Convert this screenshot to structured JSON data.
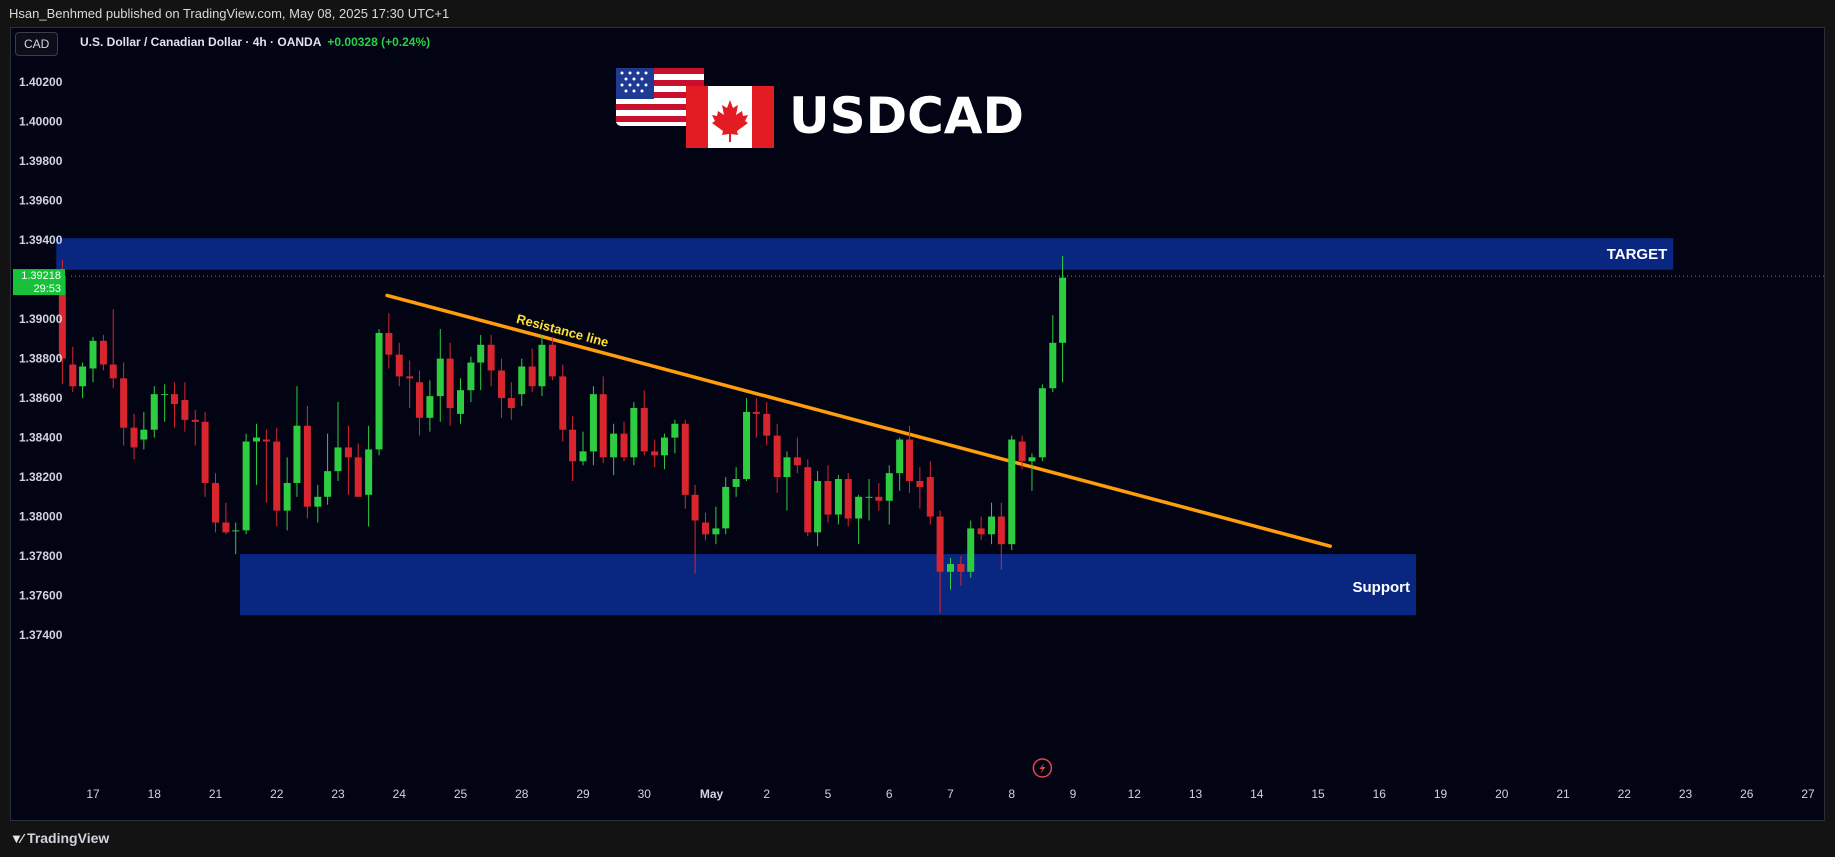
{
  "header": {
    "published_by": "Hsan_Benhmed published on TradingView.com, May 08, 2025 17:30 UTC+1"
  },
  "toolbar": {
    "symbol_badge": "CAD"
  },
  "legend": {
    "title": "U.S. Dollar / Canadian Dollar · 4h · OANDA",
    "change": "+0.00328 (+0.24%)"
  },
  "brand": {
    "title": "USDCAD",
    "flag_left": "us-flag-icon",
    "flag_right": "canada-flag-icon"
  },
  "footer": {
    "logo_text": "TradingView"
  },
  "colors": {
    "background": "#020414",
    "up": "#2ecc40",
    "down": "#d9262e",
    "zone": "#0a2a8a",
    "trendline": "#ff9d0a",
    "price_tag": "#18c13a"
  },
  "chart_data": {
    "type": "candlestick",
    "title": "U.S. Dollar / Canadian Dollar · 4h · OANDA",
    "ylim": [
      1.3735,
      1.4035
    ],
    "y_ticks": [
      "1.40200",
      "1.40000",
      "1.39800",
      "1.39600",
      "1.39400",
      "1.39000",
      "1.38800",
      "1.38600",
      "1.38400",
      "1.38200",
      "1.38000",
      "1.37800",
      "1.37600",
      "1.37400"
    ],
    "x_ticks": [
      {
        "label": "17",
        "day": 0
      },
      {
        "label": "18",
        "day": 1
      },
      {
        "label": "21",
        "day": 2
      },
      {
        "label": "22",
        "day": 3
      },
      {
        "label": "23",
        "day": 4
      },
      {
        "label": "24",
        "day": 5
      },
      {
        "label": "25",
        "day": 6
      },
      {
        "label": "28",
        "day": 7
      },
      {
        "label": "29",
        "day": 8
      },
      {
        "label": "30",
        "day": 9
      },
      {
        "label": "May",
        "day": 10
      },
      {
        "label": "2",
        "day": 11
      },
      {
        "label": "5",
        "day": 12
      },
      {
        "label": "6",
        "day": 13
      },
      {
        "label": "7",
        "day": 14
      },
      {
        "label": "8",
        "day": 15
      },
      {
        "label": "9",
        "day": 16
      },
      {
        "label": "12",
        "day": 17
      },
      {
        "label": "13",
        "day": 18
      },
      {
        "label": "14",
        "day": 19
      },
      {
        "label": "15",
        "day": 20
      },
      {
        "label": "16",
        "day": 21
      },
      {
        "label": "19",
        "day": 22
      },
      {
        "label": "20",
        "day": 23
      },
      {
        "label": "21",
        "day": 24
      },
      {
        "label": "22",
        "day": 25
      },
      {
        "label": "23",
        "day": 26
      },
      {
        "label": "26",
        "day": 27
      },
      {
        "label": "27",
        "day": 28
      }
    ],
    "last_price": "1.39218",
    "countdown": "29:53",
    "zones": [
      {
        "label": "TARGET",
        "from_day": -0.6,
        "to_day": 25.8,
        "low": 1.3925,
        "high": 1.3941
      },
      {
        "label": "Support",
        "from_day": 2.4,
        "to_day": 21.6,
        "low": 1.375,
        "high": 1.3781
      }
    ],
    "trendline": {
      "label": "Resistance line",
      "start": {
        "day": 4.8,
        "price": 1.3912
      },
      "end": {
        "day": 20.2,
        "price": 1.3785
      }
    },
    "candles": [
      {
        "d": -0.5,
        "o": 1.3922,
        "h": 1.393,
        "l": 1.3867,
        "c": 1.388
      },
      {
        "d": -0.33,
        "o": 1.3877,
        "h": 1.3886,
        "l": 1.3863,
        "c": 1.3866
      },
      {
        "d": -0.17,
        "o": 1.3866,
        "h": 1.3878,
        "l": 1.386,
        "c": 1.3876
      },
      {
        "d": 0.0,
        "o": 1.3875,
        "h": 1.3891,
        "l": 1.3868,
        "c": 1.3889
      },
      {
        "d": 0.17,
        "o": 1.3889,
        "h": 1.3892,
        "l": 1.3874,
        "c": 1.3877
      },
      {
        "d": 0.33,
        "o": 1.3877,
        "h": 1.3905,
        "l": 1.3865,
        "c": 1.387
      },
      {
        "d": 0.5,
        "o": 1.387,
        "h": 1.3878,
        "l": 1.3836,
        "c": 1.3845
      },
      {
        "d": 0.67,
        "o": 1.3845,
        "h": 1.3852,
        "l": 1.3829,
        "c": 1.3835
      },
      {
        "d": 0.83,
        "o": 1.3839,
        "h": 1.3853,
        "l": 1.3834,
        "c": 1.3844
      },
      {
        "d": 1.0,
        "o": 1.3844,
        "h": 1.3866,
        "l": 1.384,
        "c": 1.3862
      },
      {
        "d": 1.17,
        "o": 1.3862,
        "h": 1.3867,
        "l": 1.3848,
        "c": 1.3862
      },
      {
        "d": 1.33,
        "o": 1.3862,
        "h": 1.3868,
        "l": 1.3845,
        "c": 1.3857
      },
      {
        "d": 1.5,
        "o": 1.3859,
        "h": 1.3868,
        "l": 1.3843,
        "c": 1.3849
      },
      {
        "d": 1.67,
        "o": 1.3849,
        "h": 1.3854,
        "l": 1.3836,
        "c": 1.3848
      },
      {
        "d": 1.83,
        "o": 1.3848,
        "h": 1.3853,
        "l": 1.381,
        "c": 1.3817
      },
      {
        "d": 2.0,
        "o": 1.3817,
        "h": 1.3822,
        "l": 1.3792,
        "c": 1.3797
      },
      {
        "d": 2.17,
        "o": 1.3797,
        "h": 1.3807,
        "l": 1.3791,
        "c": 1.3792
      },
      {
        "d": 2.33,
        "o": 1.3793,
        "h": 1.3797,
        "l": 1.3781,
        "c": 1.3793
      },
      {
        "d": 2.5,
        "o": 1.3793,
        "h": 1.3842,
        "l": 1.3791,
        "c": 1.3838
      },
      {
        "d": 2.67,
        "o": 1.3838,
        "h": 1.3847,
        "l": 1.3816,
        "c": 1.384
      },
      {
        "d": 2.83,
        "o": 1.3839,
        "h": 1.3844,
        "l": 1.3807,
        "c": 1.3838
      },
      {
        "d": 3.0,
        "o": 1.3838,
        "h": 1.3845,
        "l": 1.3795,
        "c": 1.3803
      },
      {
        "d": 3.17,
        "o": 1.3803,
        "h": 1.383,
        "l": 1.3793,
        "c": 1.3817
      },
      {
        "d": 3.33,
        "o": 1.3817,
        "h": 1.3866,
        "l": 1.381,
        "c": 1.3846
      },
      {
        "d": 3.5,
        "o": 1.3846,
        "h": 1.3856,
        "l": 1.3799,
        "c": 1.3805
      },
      {
        "d": 3.67,
        "o": 1.3805,
        "h": 1.3816,
        "l": 1.3797,
        "c": 1.381
      },
      {
        "d": 3.83,
        "o": 1.381,
        "h": 1.3842,
        "l": 1.3806,
        "c": 1.3823
      },
      {
        "d": 4.0,
        "o": 1.3823,
        "h": 1.3858,
        "l": 1.3818,
        "c": 1.3835
      },
      {
        "d": 4.17,
        "o": 1.3835,
        "h": 1.3846,
        "l": 1.3811,
        "c": 1.383
      },
      {
        "d": 4.33,
        "o": 1.383,
        "h": 1.3837,
        "l": 1.3811,
        "c": 1.381
      },
      {
        "d": 4.5,
        "o": 1.3811,
        "h": 1.3846,
        "l": 1.3795,
        "c": 1.3834
      },
      {
        "d": 4.67,
        "o": 1.3834,
        "h": 1.3895,
        "l": 1.3831,
        "c": 1.3893
      },
      {
        "d": 4.83,
        "o": 1.3893,
        "h": 1.3903,
        "l": 1.3875,
        "c": 1.3882
      },
      {
        "d": 5.0,
        "o": 1.3882,
        "h": 1.3888,
        "l": 1.3866,
        "c": 1.3871
      },
      {
        "d": 5.17,
        "o": 1.3871,
        "h": 1.3879,
        "l": 1.3855,
        "c": 1.387
      },
      {
        "d": 5.33,
        "o": 1.3868,
        "h": 1.3874,
        "l": 1.3841,
        "c": 1.385
      },
      {
        "d": 5.5,
        "o": 1.385,
        "h": 1.3869,
        "l": 1.3843,
        "c": 1.3861
      },
      {
        "d": 5.67,
        "o": 1.3861,
        "h": 1.3895,
        "l": 1.3848,
        "c": 1.388
      },
      {
        "d": 5.83,
        "o": 1.388,
        "h": 1.3888,
        "l": 1.3846,
        "c": 1.3855
      },
      {
        "d": 6.0,
        "o": 1.3852,
        "h": 1.387,
        "l": 1.3847,
        "c": 1.3864
      },
      {
        "d": 6.17,
        "o": 1.3864,
        "h": 1.3881,
        "l": 1.3858,
        "c": 1.3878
      },
      {
        "d": 6.33,
        "o": 1.3878,
        "h": 1.3892,
        "l": 1.3864,
        "c": 1.3887
      },
      {
        "d": 6.5,
        "o": 1.3887,
        "h": 1.3892,
        "l": 1.3866,
        "c": 1.3874
      },
      {
        "d": 6.67,
        "o": 1.3874,
        "h": 1.388,
        "l": 1.385,
        "c": 1.386
      },
      {
        "d": 6.83,
        "o": 1.386,
        "h": 1.3868,
        "l": 1.3849,
        "c": 1.3855
      },
      {
        "d": 7.0,
        "o": 1.3862,
        "h": 1.388,
        "l": 1.3856,
        "c": 1.3876
      },
      {
        "d": 7.17,
        "o": 1.3876,
        "h": 1.3885,
        "l": 1.3863,
        "c": 1.3866
      },
      {
        "d": 7.33,
        "o": 1.3866,
        "h": 1.3892,
        "l": 1.3861,
        "c": 1.3887
      },
      {
        "d": 7.5,
        "o": 1.3887,
        "h": 1.3891,
        "l": 1.3869,
        "c": 1.3871
      },
      {
        "d": 7.67,
        "o": 1.3871,
        "h": 1.3877,
        "l": 1.3838,
        "c": 1.3844
      },
      {
        "d": 7.83,
        "o": 1.3844,
        "h": 1.3851,
        "l": 1.3818,
        "c": 1.3828
      },
      {
        "d": 8.0,
        "o": 1.3828,
        "h": 1.3843,
        "l": 1.3826,
        "c": 1.3833
      },
      {
        "d": 8.17,
        "o": 1.3833,
        "h": 1.3866,
        "l": 1.3826,
        "c": 1.3862
      },
      {
        "d": 8.33,
        "o": 1.3862,
        "h": 1.3871,
        "l": 1.3827,
        "c": 1.383
      },
      {
        "d": 8.5,
        "o": 1.383,
        "h": 1.3847,
        "l": 1.3821,
        "c": 1.3842
      },
      {
        "d": 8.67,
        "o": 1.3842,
        "h": 1.3848,
        "l": 1.3828,
        "c": 1.383
      },
      {
        "d": 8.83,
        "o": 1.383,
        "h": 1.3858,
        "l": 1.3826,
        "c": 1.3855
      },
      {
        "d": 9.0,
        "o": 1.3855,
        "h": 1.3864,
        "l": 1.3831,
        "c": 1.3833
      },
      {
        "d": 9.17,
        "o": 1.3833,
        "h": 1.3839,
        "l": 1.3825,
        "c": 1.3831
      },
      {
        "d": 9.33,
        "o": 1.3831,
        "h": 1.3842,
        "l": 1.3824,
        "c": 1.384
      },
      {
        "d": 9.5,
        "o": 1.384,
        "h": 1.3849,
        "l": 1.3832,
        "c": 1.3847
      },
      {
        "d": 9.67,
        "o": 1.3847,
        "h": 1.3849,
        "l": 1.3804,
        "c": 1.3811
      },
      {
        "d": 9.83,
        "o": 1.3811,
        "h": 1.3816,
        "l": 1.3771,
        "c": 1.3798
      },
      {
        "d": 10.0,
        "o": 1.3797,
        "h": 1.3802,
        "l": 1.3788,
        "c": 1.3791
      },
      {
        "d": 10.17,
        "o": 1.3791,
        "h": 1.3805,
        "l": 1.3786,
        "c": 1.3794
      },
      {
        "d": 10.33,
        "o": 1.3794,
        "h": 1.382,
        "l": 1.3791,
        "c": 1.3815
      },
      {
        "d": 10.5,
        "o": 1.3815,
        "h": 1.3825,
        "l": 1.381,
        "c": 1.3819
      },
      {
        "d": 10.67,
        "o": 1.3819,
        "h": 1.386,
        "l": 1.3818,
        "c": 1.3853
      },
      {
        "d": 10.83,
        "o": 1.3853,
        "h": 1.386,
        "l": 1.384,
        "c": 1.3852
      },
      {
        "d": 11.0,
        "o": 1.3852,
        "h": 1.3858,
        "l": 1.3836,
        "c": 1.3841
      },
      {
        "d": 11.17,
        "o": 1.3841,
        "h": 1.3847,
        "l": 1.3812,
        "c": 1.382
      },
      {
        "d": 11.33,
        "o": 1.382,
        "h": 1.3833,
        "l": 1.3803,
        "c": 1.383
      },
      {
        "d": 11.5,
        "o": 1.383,
        "h": 1.384,
        "l": 1.3822,
        "c": 1.3826
      },
      {
        "d": 11.67,
        "o": 1.3825,
        "h": 1.3829,
        "l": 1.379,
        "c": 1.3792
      },
      {
        "d": 11.83,
        "o": 1.3792,
        "h": 1.3823,
        "l": 1.3785,
        "c": 1.3818
      },
      {
        "d": 12.0,
        "o": 1.3818,
        "h": 1.3826,
        "l": 1.3797,
        "c": 1.3801
      },
      {
        "d": 12.17,
        "o": 1.3801,
        "h": 1.3821,
        "l": 1.3796,
        "c": 1.3819
      },
      {
        "d": 12.33,
        "o": 1.3819,
        "h": 1.3822,
        "l": 1.3795,
        "c": 1.3799
      },
      {
        "d": 12.5,
        "o": 1.3799,
        "h": 1.3811,
        "l": 1.3786,
        "c": 1.381
      },
      {
        "d": 12.67,
        "o": 1.381,
        "h": 1.3819,
        "l": 1.3798,
        "c": 1.381
      },
      {
        "d": 12.83,
        "o": 1.381,
        "h": 1.3817,
        "l": 1.3803,
        "c": 1.3808
      },
      {
        "d": 13.0,
        "o": 1.3808,
        "h": 1.3826,
        "l": 1.3796,
        "c": 1.3822
      },
      {
        "d": 13.17,
        "o": 1.3822,
        "h": 1.384,
        "l": 1.3813,
        "c": 1.3839
      },
      {
        "d": 13.33,
        "o": 1.3839,
        "h": 1.3846,
        "l": 1.3812,
        "c": 1.3818
      },
      {
        "d": 13.5,
        "o": 1.3818,
        "h": 1.3825,
        "l": 1.3804,
        "c": 1.3815
      },
      {
        "d": 13.67,
        "o": 1.382,
        "h": 1.3828,
        "l": 1.3796,
        "c": 1.38
      },
      {
        "d": 13.83,
        "o": 1.38,
        "h": 1.3803,
        "l": 1.3751,
        "c": 1.3772
      },
      {
        "d": 14.0,
        "o": 1.3772,
        "h": 1.3779,
        "l": 1.3763,
        "c": 1.3776
      },
      {
        "d": 14.17,
        "o": 1.3776,
        "h": 1.378,
        "l": 1.3765,
        "c": 1.3772
      },
      {
        "d": 14.33,
        "o": 1.3772,
        "h": 1.3798,
        "l": 1.3769,
        "c": 1.3794
      },
      {
        "d": 14.5,
        "o": 1.3794,
        "h": 1.38,
        "l": 1.3788,
        "c": 1.3791
      },
      {
        "d": 14.67,
        "o": 1.3791,
        "h": 1.3807,
        "l": 1.3786,
        "c": 1.38
      },
      {
        "d": 14.83,
        "o": 1.38,
        "h": 1.3807,
        "l": 1.3773,
        "c": 1.3786
      },
      {
        "d": 15.0,
        "o": 1.3786,
        "h": 1.3841,
        "l": 1.3783,
        "c": 1.3839
      },
      {
        "d": 15.17,
        "o": 1.3838,
        "h": 1.3841,
        "l": 1.3824,
        "c": 1.3828
      },
      {
        "d": 15.33,
        "o": 1.3828,
        "h": 1.3832,
        "l": 1.3813,
        "c": 1.383
      },
      {
        "d": 15.5,
        "o": 1.383,
        "h": 1.3867,
        "l": 1.3828,
        "c": 1.3865
      },
      {
        "d": 15.67,
        "o": 1.3865,
        "h": 1.3902,
        "l": 1.3863,
        "c": 1.3888
      },
      {
        "d": 15.83,
        "o": 1.3888,
        "h": 1.3932,
        "l": 1.3868,
        "c": 1.3921
      }
    ]
  }
}
